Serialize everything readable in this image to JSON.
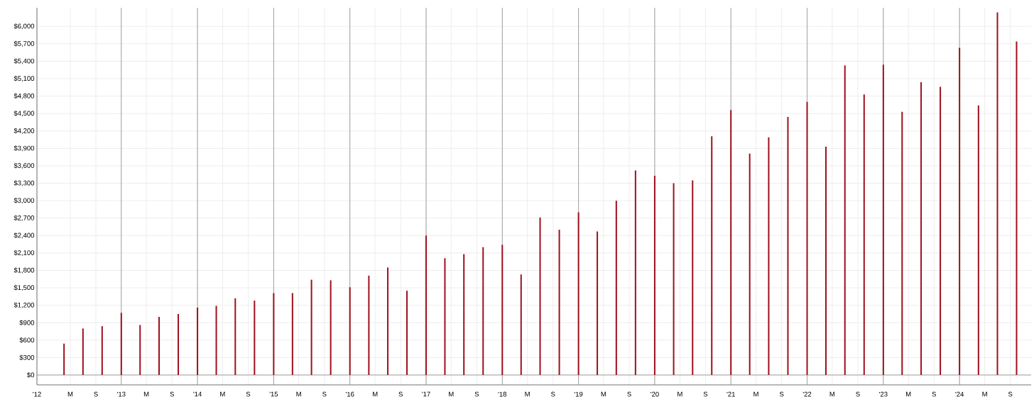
{
  "chart_data": {
    "type": "bar",
    "color": "#9e0f1c",
    "grid": true,
    "x": [
      "2012-04-01",
      "2012-07-01",
      "2012-10-01",
      "2013-01-01",
      "2013-04-01",
      "2013-07-01",
      "2013-10-01",
      "2014-01-01",
      "2014-04-01",
      "2014-07-01",
      "2014-10-01",
      "2015-01-01",
      "2015-04-01",
      "2015-07-01",
      "2015-10-01",
      "2016-01-01",
      "2016-04-01",
      "2016-07-01",
      "2016-10-01",
      "2017-01-01",
      "2017-04-01",
      "2017-07-01",
      "2017-10-01",
      "2018-01-01",
      "2018-04-01",
      "2018-07-01",
      "2018-10-01",
      "2019-01-01",
      "2019-04-01",
      "2019-07-01",
      "2019-10-01",
      "2020-01-01",
      "2020-04-01",
      "2020-07-01",
      "2020-10-01",
      "2021-01-01",
      "2021-04-01",
      "2021-07-01",
      "2021-10-01",
      "2022-01-01",
      "2022-04-01",
      "2022-07-01",
      "2022-10-01",
      "2023-01-01",
      "2023-04-01",
      "2023-07-01",
      "2023-10-01",
      "2024-01-01",
      "2024-04-01",
      "2024-07-01",
      "2024-10-01"
    ],
    "values": [
      540,
      800,
      840,
      1070,
      860,
      1000,
      1050,
      1160,
      1190,
      1320,
      1280,
      1410,
      1410,
      1640,
      1630,
      1510,
      1710,
      1850,
      1450,
      2400,
      2010,
      2080,
      2200,
      2240,
      1730,
      2710,
      2500,
      2800,
      2470,
      3000,
      3520,
      3430,
      3300,
      3350,
      4110,
      4560,
      3810,
      4090,
      4440,
      4700,
      3930,
      5330,
      4830,
      5340,
      4530,
      5040,
      4960,
      5630,
      4640,
      6240,
      5740
    ],
    "xlim": [
      "2011-11-23",
      "2024-12-10"
    ],
    "ylim": [
      -170,
      6320
    ],
    "xticks": [
      {
        "value": "2011-11-23",
        "label": "'12"
      },
      {
        "value": "2012-05-01",
        "label": "M"
      },
      {
        "value": "2012-09-01",
        "label": "S"
      },
      {
        "value": "2013-01-01",
        "label": "'13"
      },
      {
        "value": "2013-05-01",
        "label": "M"
      },
      {
        "value": "2013-09-01",
        "label": "S"
      },
      {
        "value": "2014-01-01",
        "label": "'14"
      },
      {
        "value": "2014-05-01",
        "label": "M"
      },
      {
        "value": "2014-09-01",
        "label": "S"
      },
      {
        "value": "2015-01-01",
        "label": "'15"
      },
      {
        "value": "2015-05-01",
        "label": "M"
      },
      {
        "value": "2015-09-01",
        "label": "S"
      },
      {
        "value": "2016-01-01",
        "label": "'16"
      },
      {
        "value": "2016-05-01",
        "label": "M"
      },
      {
        "value": "2016-09-01",
        "label": "S"
      },
      {
        "value": "2017-01-01",
        "label": "'17"
      },
      {
        "value": "2017-05-01",
        "label": "M"
      },
      {
        "value": "2017-09-01",
        "label": "S"
      },
      {
        "value": "2018-01-01",
        "label": "'18"
      },
      {
        "value": "2018-05-01",
        "label": "M"
      },
      {
        "value": "2018-09-01",
        "label": "S"
      },
      {
        "value": "2019-01-01",
        "label": "'19"
      },
      {
        "value": "2019-05-01",
        "label": "M"
      },
      {
        "value": "2019-09-01",
        "label": "S"
      },
      {
        "value": "2020-01-01",
        "label": "'20"
      },
      {
        "value": "2020-05-01",
        "label": "M"
      },
      {
        "value": "2020-09-01",
        "label": "S"
      },
      {
        "value": "2021-01-01",
        "label": "'21"
      },
      {
        "value": "2021-05-01",
        "label": "M"
      },
      {
        "value": "2021-09-01",
        "label": "S"
      },
      {
        "value": "2022-01-01",
        "label": "'22"
      },
      {
        "value": "2022-05-01",
        "label": "M"
      },
      {
        "value": "2022-09-01",
        "label": "S"
      },
      {
        "value": "2023-01-01",
        "label": "'23"
      },
      {
        "value": "2023-05-01",
        "label": "M"
      },
      {
        "value": "2023-09-01",
        "label": "S"
      },
      {
        "value": "2024-01-01",
        "label": "'24"
      },
      {
        "value": "2024-05-01",
        "label": "M"
      },
      {
        "value": "2024-09-01",
        "label": "S"
      }
    ],
    "yticks": [
      {
        "value": 0,
        "label": "$0"
      },
      {
        "value": 300,
        "label": "$300"
      },
      {
        "value": 600,
        "label": "$600"
      },
      {
        "value": 900,
        "label": "$900"
      },
      {
        "value": 1200,
        "label": "$1,200"
      },
      {
        "value": 1500,
        "label": "$1,500"
      },
      {
        "value": 1800,
        "label": "$1,800"
      },
      {
        "value": 2100,
        "label": "$2,100"
      },
      {
        "value": 2400,
        "label": "$2,400"
      },
      {
        "value": 2700,
        "label": "$2,700"
      },
      {
        "value": 3000,
        "label": "$3,000"
      },
      {
        "value": 3300,
        "label": "$3,300"
      },
      {
        "value": 3600,
        "label": "$3,600"
      },
      {
        "value": 3900,
        "label": "$3,900"
      },
      {
        "value": 4200,
        "label": "$4,200"
      },
      {
        "value": 4500,
        "label": "$4,500"
      },
      {
        "value": 4800,
        "label": "$4,800"
      },
      {
        "value": 5100,
        "label": "$5,100"
      },
      {
        "value": 5400,
        "label": "$5,400"
      },
      {
        "value": 5700,
        "label": "$5,700"
      },
      {
        "value": 6000,
        "label": "$6,000"
      }
    ]
  }
}
